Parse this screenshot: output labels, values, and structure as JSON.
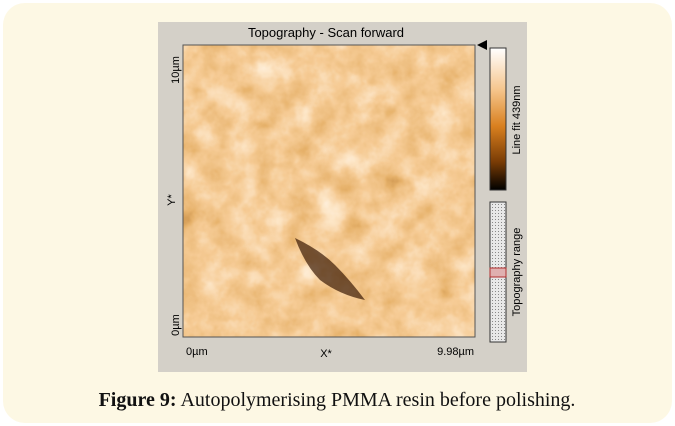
{
  "figure": {
    "image_title": "Topography - Scan forward",
    "y_axis": {
      "max_label": "10µm",
      "name": "Y*",
      "min_label": "0µm"
    },
    "x_axis": {
      "min_label": "0µm",
      "name": "X*",
      "max_label": "9.98µm"
    },
    "colorbar_label": "Line fit 439nm",
    "range_label": "Topography range"
  },
  "caption": {
    "label": "Figure 9:",
    "text": "Autopolymerising PMMA resin before polishing."
  }
}
